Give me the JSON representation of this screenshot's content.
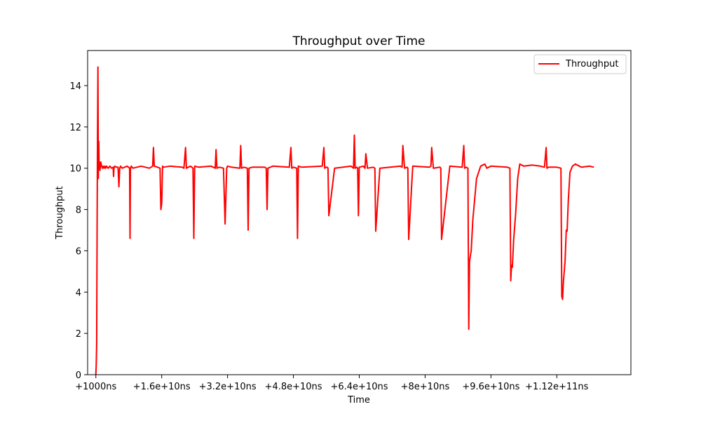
{
  "chart_data": {
    "type": "line",
    "title": "Throughput over Time",
    "xlabel": "Time",
    "ylabel": "Throughput",
    "x_unit": "ns",
    "xlim": [
      -2000000000,
      130000000000
    ],
    "ylim": [
      0,
      15.7
    ],
    "x_ticks": [
      {
        "value": 1000,
        "label": "+1000ns"
      },
      {
        "value": 16000000000,
        "label": "+1.6e+10ns"
      },
      {
        "value": 32000000000,
        "label": "+3.2e+10ns"
      },
      {
        "value": 48000000000,
        "label": "+4.8e+10ns"
      },
      {
        "value": 64000000000,
        "label": "+6.4e+10ns"
      },
      {
        "value": 80000000000,
        "label": "+8e+10ns"
      },
      {
        "value": 96000000000,
        "label": "+9.6e+10ns"
      },
      {
        "value": 112000000000,
        "label": "+1.12e+11ns"
      }
    ],
    "y_ticks": [
      {
        "value": 0,
        "label": "0"
      },
      {
        "value": 2,
        "label": "2"
      },
      {
        "value": 4,
        "label": "4"
      },
      {
        "value": 6,
        "label": "6"
      },
      {
        "value": 8,
        "label": "8"
      },
      {
        "value": 10,
        "label": "10"
      },
      {
        "value": 12,
        "label": "12"
      },
      {
        "value": 14,
        "label": "14"
      }
    ],
    "grid": false,
    "legend": {
      "position": "top-right",
      "entries": [
        "Throughput"
      ]
    },
    "series": [
      {
        "name": "Throughput",
        "color": "#ff0000",
        "x": [
          0,
          100000000,
          200000000,
          300000000,
          400000000,
          500000000,
          600000000,
          700000000,
          800000000,
          900000000,
          1000000000,
          1200000000,
          1400000000,
          1600000000,
          1800000000,
          2000000000,
          2200000000,
          2400000000,
          2600000000,
          3000000000,
          3400000000,
          3800000000,
          4200000000,
          4300000000,
          4400000000,
          4600000000,
          5000000000,
          5400000000,
          5600000000,
          5800000000,
          6000000000,
          6400000000,
          7000000000,
          7600000000,
          8200000000,
          8300000000,
          8400000000,
          8600000000,
          9000000000,
          11000000000,
          13000000000,
          13800000000,
          14000000000,
          14200000000,
          15000000000,
          15600000000,
          15800000000,
          16000000000,
          16200000000,
          16400000000,
          18000000000,
          21000000000,
          21400000000,
          21800000000,
          22000000000,
          23000000000,
          23600000000,
          23800000000,
          24000000000,
          25000000000,
          28000000000,
          29000000000,
          29200000000,
          29400000000,
          30000000000,
          31000000000,
          31400000000,
          31800000000,
          32000000000,
          33000000000,
          35000000000,
          35200000000,
          35400000000,
          36000000000,
          36800000000,
          37000000000,
          37200000000,
          38000000000,
          41000000000,
          41400000000,
          41600000000,
          41800000000,
          43000000000,
          47000000000,
          47400000000,
          47600000000,
          48000000000,
          48800000000,
          49000000000,
          49200000000,
          50000000000,
          55000000000,
          55400000000,
          55600000000,
          56000000000,
          56200000000,
          56400000000,
          56600000000,
          58000000000,
          62000000000,
          62600000000,
          62800000000,
          63000000000,
          63400000000,
          63600000000,
          63800000000,
          64000000000,
          65000000000,
          65400000000,
          65600000000,
          66000000000,
          67400000000,
          67800000000,
          68000000000,
          69000000000,
          74000000000,
          74400000000,
          74600000000,
          75000000000,
          75600000000,
          75800000000,
          76000000000,
          77000000000,
          81000000000,
          81400000000,
          81600000000,
          82000000000,
          83600000000,
          83800000000,
          84000000000,
          86000000000,
          89000000000,
          89400000000,
          89600000000,
          90000000000,
          90400000000,
          90600000000,
          90800000000,
          91200000000,
          91600000000,
          92500000000,
          93500000000,
          94500000000,
          95000000000,
          96000000000,
          100000000000,
          100600000000,
          100800000000,
          101000000000,
          101200000000,
          101500000000,
          102000000000,
          102500000000,
          103000000000,
          104000000000,
          106000000000,
          108000000000,
          109000000000,
          109400000000,
          109600000000,
          110000000000,
          112000000000,
          113000000000,
          113200000000,
          113400000000,
          113600000000,
          114000000000,
          114300000000,
          114500000000,
          114800000000,
          115200000000,
          115800000000,
          116500000000,
          118000000000,
          120000000000,
          121000000000
        ],
        "y": [
          0.0,
          0.5,
          1.5,
          7.0,
          11.5,
          14.9,
          9.5,
          11.3,
          10.1,
          10.3,
          9.9,
          10.3,
          10.1,
          10.0,
          10.1,
          10.0,
          10.1,
          10.0,
          10.1,
          10.0,
          10.1,
          10.0,
          10.05,
          9.6,
          10.0,
          10.1,
          10.05,
          10.05,
          9.1,
          10.0,
          10.1,
          10.0,
          10.05,
          10.1,
          10.0,
          6.6,
          10.0,
          10.1,
          10.0,
          10.1,
          10.0,
          10.1,
          11.0,
          10.1,
          10.05,
          10.0,
          8.0,
          8.3,
          10.1,
          10.05,
          10.1,
          10.05,
          10.0,
          11.0,
          10.0,
          10.1,
          10.0,
          6.6,
          10.1,
          10.05,
          10.1,
          10.0,
          10.9,
          10.0,
          10.05,
          10.0,
          7.3,
          10.0,
          10.1,
          10.05,
          10.0,
          11.1,
          10.0,
          10.05,
          10.0,
          7.0,
          10.0,
          10.05,
          10.05,
          10.0,
          8.0,
          10.0,
          10.1,
          10.05,
          11.0,
          10.0,
          10.05,
          10.0,
          6.6,
          10.1,
          10.05,
          10.1,
          11.0,
          10.0,
          10.05,
          10.05,
          10.0,
          7.7,
          10.0,
          10.1,
          10.0,
          11.6,
          10.0,
          10.05,
          10.0,
          7.7,
          10.05,
          10.1,
          10.0,
          10.7,
          10.0,
          10.05,
          10.0,
          6.95,
          10.0,
          10.1,
          10.05,
          11.1,
          10.0,
          10.05,
          10.0,
          6.55,
          10.1,
          10.05,
          10.1,
          11.0,
          10.0,
          10.05,
          10.0,
          6.55,
          10.1,
          10.05,
          11.1,
          10.0,
          10.05,
          10.0,
          2.2,
          5.5,
          6.0,
          7.5,
          9.5,
          10.1,
          10.2,
          10.0,
          10.1,
          10.05,
          10.0,
          4.55,
          5.3,
          5.2,
          6.5,
          7.8,
          9.5,
          10.2,
          10.1,
          10.15,
          10.1,
          10.05,
          11.0,
          10.0,
          10.05,
          10.05,
          10.0,
          3.8,
          3.65,
          4.5,
          5.5,
          7.0,
          6.95,
          8.5,
          9.8,
          10.1,
          10.2,
          10.05,
          10.1,
          10.05
        ]
      }
    ]
  }
}
